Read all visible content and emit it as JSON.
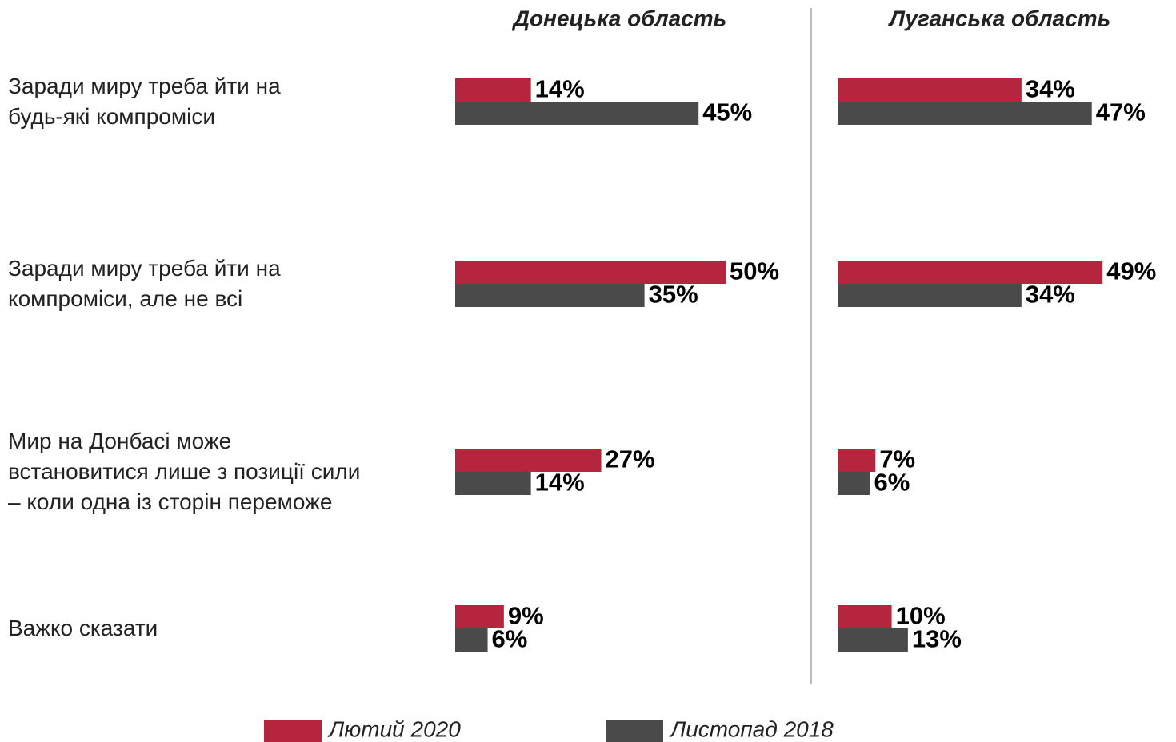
{
  "chart_data": {
    "type": "bar",
    "orientation": "horizontal",
    "categories": [
      "Заради миру треба йти на\nбудь-які компроміси",
      "Заради миру треба йти на\nкомпроміси, але не всі",
      "Мир на Донбасі може\nвстановитися лише з позиції сили\n– коли одна із сторін переможе",
      "Важко сказати"
    ],
    "series": [
      {
        "name": "Лютий 2020",
        "color": "#b5253d"
      },
      {
        "name": "Листопад 2018",
        "color": "#4a4a4a"
      }
    ],
    "xlim": [
      0,
      100
    ],
    "panels": [
      {
        "title": "Донецька область",
        "values": [
          [
            14,
            50,
            27,
            9
          ],
          [
            45,
            35,
            14,
            6
          ]
        ],
        "value_labels": [
          [
            "14%",
            "50%",
            "27%",
            "9%"
          ],
          [
            "45%",
            "35%",
            "14%",
            "6%"
          ]
        ]
      },
      {
        "title": "Луганська область",
        "values": [
          [
            34,
            49,
            7,
            10
          ],
          [
            47,
            34,
            6,
            13
          ]
        ],
        "value_labels": [
          [
            "34%",
            "49%",
            "7%",
            "10%"
          ],
          [
            "47%",
            "34%",
            "6%",
            "13%"
          ]
        ]
      }
    ]
  }
}
